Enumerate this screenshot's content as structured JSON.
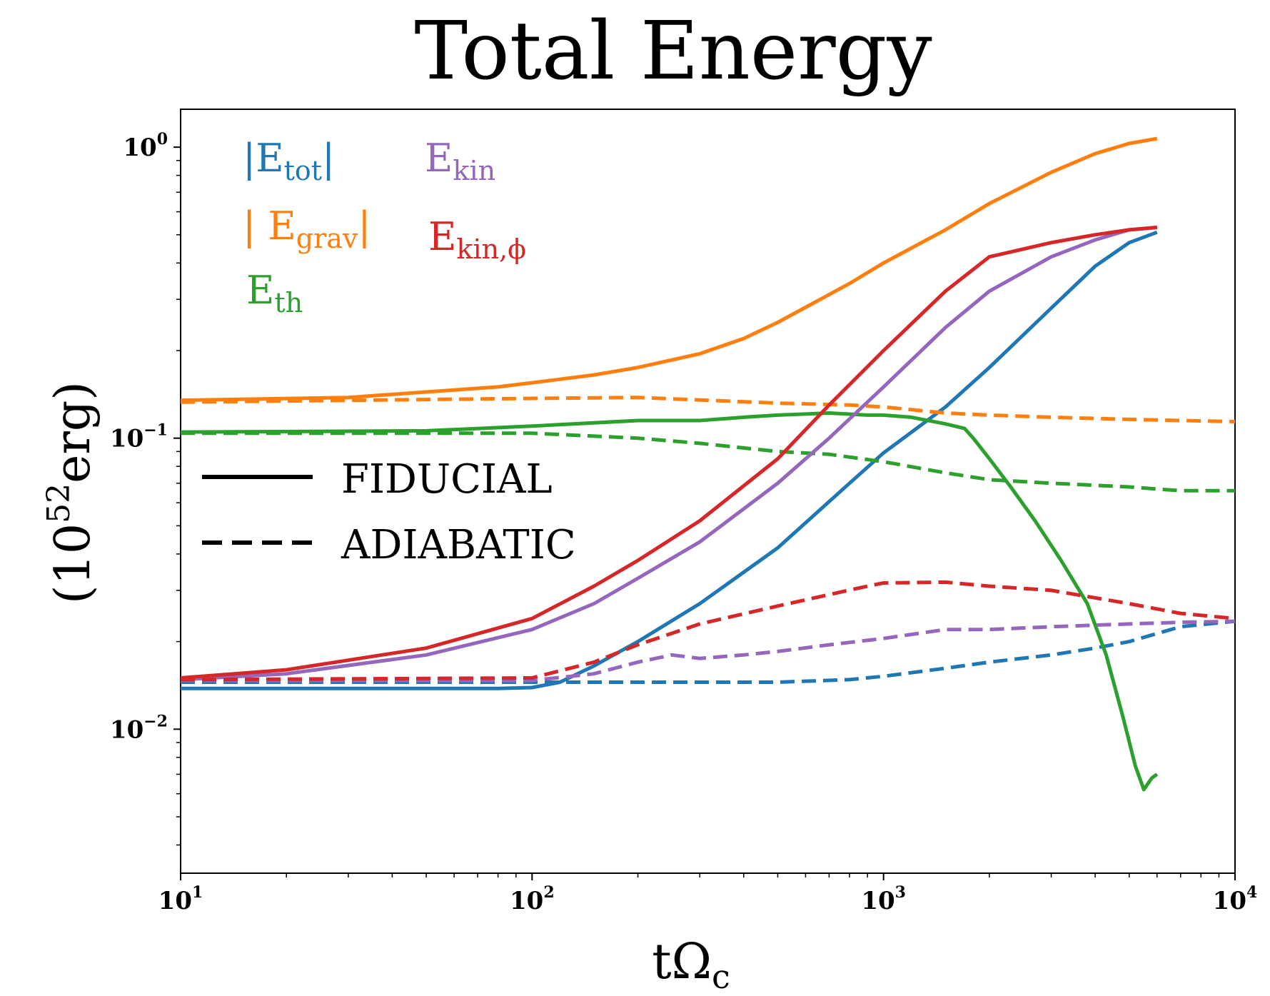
{
  "chart_data": {
    "type": "line",
    "title": "Total Energy",
    "xlabel_main": "tΩ",
    "xlabel_sub": "c",
    "ylabel_open": "(10",
    "ylabel_exp": "52",
    "ylabel_unit": "erg)",
    "xscale": "log",
    "yscale": "log",
    "xlim": [
      10,
      10000
    ],
    "ylim": [
      0.0032,
      1.35
    ],
    "x_ticks": [
      {
        "base": "10",
        "exp": "1",
        "value": 10
      },
      {
        "base": "10",
        "exp": "2",
        "value": 100
      },
      {
        "base": "10",
        "exp": "3",
        "value": 1000
      },
      {
        "base": "10",
        "exp": "4",
        "value": 10000
      }
    ],
    "y_ticks": [
      {
        "base": "10",
        "exp": "0",
        "value": 1
      },
      {
        "base": "10",
        "exp": "−1",
        "value": 0.1
      },
      {
        "base": "10",
        "exp": "−2",
        "value": 0.01
      }
    ],
    "legend_quantities": {
      "etot": {
        "pre": "|E",
        "sub": "tot",
        "post": "|",
        "color": "#1f77b4"
      },
      "egrav": {
        "pre": "| E",
        "sub": "grav",
        "post": "|",
        "color": "#ff7f0e"
      },
      "eth": {
        "pre": "E",
        "sub": "th",
        "post": "",
        "color": "#2ca02c"
      },
      "ekin": {
        "pre": "E",
        "sub": "kin",
        "post": "",
        "color": "#9467bd"
      },
      "ekinphi": {
        "pre": "E",
        "sub": "kin,ϕ",
        "post": "",
        "color": "#d62728"
      }
    },
    "legend_styles": {
      "fiducial": "FIDUCIAL",
      "adiabatic": "ADIABATIC"
    },
    "series": [
      {
        "name": "|Etot| FIDUCIAL",
        "color": "#1f77b4",
        "style": "solid",
        "x": [
          10,
          30,
          80,
          100,
          120,
          150,
          200,
          300,
          500,
          800,
          1000,
          1500,
          2000,
          3000,
          4000,
          5000,
          6000
        ],
        "y": [
          0.0138,
          0.0138,
          0.0138,
          0.0139,
          0.0145,
          0.0165,
          0.02,
          0.027,
          0.042,
          0.07,
          0.089,
          0.128,
          0.175,
          0.28,
          0.39,
          0.47,
          0.51
        ]
      },
      {
        "name": "|Etot| ADIABATIC",
        "color": "#1f77b4",
        "style": "dashed",
        "x": [
          10,
          100,
          300,
          500,
          800,
          1000,
          1500,
          2000,
          3000,
          4000,
          5000,
          7000,
          10000
        ],
        "y": [
          0.0145,
          0.0145,
          0.0145,
          0.0145,
          0.0148,
          0.0152,
          0.0162,
          0.017,
          0.018,
          0.019,
          0.02,
          0.0225,
          0.0235
        ]
      },
      {
        "name": "|Egrav| FIDUCIAL",
        "color": "#ff7f0e",
        "style": "solid",
        "x": [
          10,
          30,
          80,
          100,
          150,
          200,
          300,
          400,
          500,
          800,
          1000,
          1500,
          2000,
          3000,
          4000,
          5000,
          6000
        ],
        "y": [
          0.135,
          0.138,
          0.15,
          0.155,
          0.165,
          0.175,
          0.195,
          0.22,
          0.25,
          0.34,
          0.4,
          0.52,
          0.64,
          0.82,
          0.95,
          1.03,
          1.07
        ]
      },
      {
        "name": "|Egrav| ADIABATIC",
        "color": "#ff7f0e",
        "style": "dashed",
        "x": [
          10,
          100,
          200,
          500,
          800,
          1000,
          1500,
          2000,
          3000,
          5000,
          7000,
          10000
        ],
        "y": [
          0.133,
          0.137,
          0.138,
          0.132,
          0.13,
          0.128,
          0.122,
          0.12,
          0.118,
          0.116,
          0.115,
          0.114
        ]
      },
      {
        "name": "Eth FIDUCIAL",
        "color": "#2ca02c",
        "style": "solid",
        "x": [
          10,
          50,
          100,
          200,
          300,
          400,
          500,
          700,
          900,
          1000,
          1200,
          1500,
          1700,
          1800,
          2000,
          2300,
          2700,
          3200,
          3800,
          4300,
          4800,
          5200,
          5500,
          5800,
          6000
        ],
        "y": [
          0.105,
          0.106,
          0.11,
          0.115,
          0.115,
          0.118,
          0.12,
          0.122,
          0.12,
          0.12,
          0.118,
          0.112,
          0.108,
          0.1,
          0.085,
          0.068,
          0.052,
          0.038,
          0.027,
          0.018,
          0.011,
          0.0075,
          0.0062,
          0.0068,
          0.007
        ]
      },
      {
        "name": "Eth ADIABATIC",
        "color": "#2ca02c",
        "style": "dashed",
        "x": [
          10,
          100,
          200,
          300,
          500,
          700,
          1000,
          1500,
          2000,
          3000,
          5000,
          7000,
          10000
        ],
        "y": [
          0.104,
          0.104,
          0.1,
          0.096,
          0.09,
          0.088,
          0.083,
          0.076,
          0.072,
          0.07,
          0.068,
          0.066,
          0.066
        ]
      },
      {
        "name": "Ekin FIDUCIAL",
        "color": "#9467bd",
        "style": "solid",
        "x": [
          10,
          20,
          50,
          100,
          150,
          200,
          300,
          500,
          700,
          1000,
          1500,
          2000,
          3000,
          4000,
          5000,
          6000
        ],
        "y": [
          0.0148,
          0.0155,
          0.018,
          0.022,
          0.027,
          0.033,
          0.044,
          0.07,
          0.1,
          0.15,
          0.24,
          0.32,
          0.42,
          0.48,
          0.52,
          0.53
        ]
      },
      {
        "name": "Ekin ADIABATIC",
        "color": "#9467bd",
        "style": "dashed",
        "x": [
          10,
          100,
          150,
          200,
          250,
          300,
          400,
          500,
          700,
          1000,
          1500,
          2000,
          3000,
          5000,
          7000,
          10000
        ],
        "y": [
          0.0147,
          0.0147,
          0.0155,
          0.017,
          0.018,
          0.0175,
          0.018,
          0.0185,
          0.0195,
          0.0205,
          0.022,
          0.022,
          0.0225,
          0.023,
          0.0233,
          0.0235
        ]
      },
      {
        "name": "Ekin,phi FIDUCIAL",
        "color": "#d62728",
        "style": "solid",
        "x": [
          10,
          20,
          50,
          100,
          150,
          200,
          300,
          500,
          700,
          1000,
          1500,
          2000,
          3000,
          4000,
          5000,
          6000
        ],
        "y": [
          0.015,
          0.016,
          0.019,
          0.024,
          0.031,
          0.038,
          0.052,
          0.085,
          0.13,
          0.2,
          0.32,
          0.42,
          0.47,
          0.5,
          0.52,
          0.53
        ]
      },
      {
        "name": "Ekin,phi ADIABATIC",
        "color": "#d62728",
        "style": "dashed",
        "x": [
          10,
          100,
          150,
          200,
          300,
          500,
          700,
          900,
          1000,
          1500,
          2000,
          3000,
          5000,
          7000,
          10000
        ],
        "y": [
          0.0148,
          0.015,
          0.017,
          0.0195,
          0.023,
          0.0265,
          0.029,
          0.031,
          0.0318,
          0.032,
          0.031,
          0.03,
          0.027,
          0.025,
          0.024
        ]
      }
    ]
  }
}
